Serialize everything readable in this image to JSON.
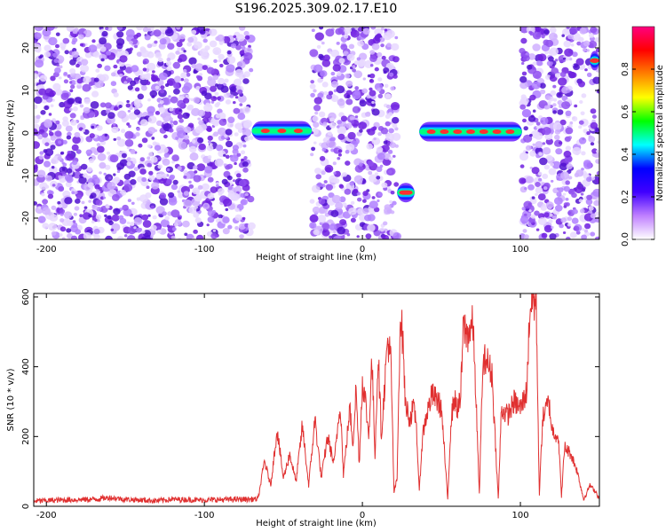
{
  "title": "S196.2025.309.02.17.E10",
  "chart_data": [
    {
      "type": "heatmap",
      "name": "spectrogram",
      "xlabel": "Height of straight line (km)",
      "ylabel": "Frequency (Hz)",
      "xlim": [
        -208,
        150
      ],
      "ylim": [
        -25,
        25
      ],
      "xticks": [
        -200,
        -100,
        0,
        100
      ],
      "yticks": [
        -20,
        -10,
        0,
        10,
        20
      ],
      "xtick_labels": [
        "-200",
        "-100",
        "0",
        "100"
      ],
      "ytick_labels": [
        "-20",
        "-10",
        "0",
        "10",
        "20"
      ],
      "noise_regions": [
        [
          -208,
          -70
        ],
        [
          -32,
          22
        ],
        [
          101,
          150
        ]
      ],
      "blank_regions": [
        [
          -70,
          -32
        ],
        [
          22,
          36
        ],
        [
          36,
          101
        ]
      ],
      "signal_traces": [
        {
          "x_start": -70,
          "x_end": -32,
          "freq_hz": 0.5,
          "peak_amplitude": 0.9
        },
        {
          "x_start": 22,
          "x_end": 33,
          "freq_hz": -14,
          "peak_amplitude": 0.85
        },
        {
          "x_start": 36,
          "x_end": 101,
          "freq_hz": 0.3,
          "peak_amplitude": 1.0
        },
        {
          "x_start": 144,
          "x_end": 150,
          "freq_hz": 17,
          "peak_amplitude": 0.8
        }
      ],
      "colorbar": {
        "label": "Normalized spectral amplitude",
        "range": [
          0,
          1
        ],
        "ticks": [
          0.0,
          0.2,
          0.4,
          0.6,
          0.8
        ],
        "tick_labels": [
          "0.0",
          "0.2",
          "0.4",
          "0.6",
          "0.8"
        ],
        "colors": [
          "#ffffff",
          "#c080ff",
          "#4000ff",
          "#0000ff",
          "#00ffff",
          "#00ff00",
          "#ffff00",
          "#ff8000",
          "#ff0000",
          "#ff0080"
        ]
      }
    },
    {
      "type": "line",
      "name": "snr",
      "xlabel": "Height of straight line (km)",
      "ylabel": "SNR (10 * v/v)",
      "xlim": [
        -208,
        150
      ],
      "ylim": [
        0,
        610
      ],
      "xticks": [
        -200,
        -100,
        0,
        100
      ],
      "yticks": [
        0,
        200,
        400,
        600
      ],
      "xtick_labels": [
        "-200",
        "-100",
        "0",
        "100"
      ],
      "ytick_labels": [
        "0",
        "200",
        "400",
        "600"
      ],
      "color": "#e03030",
      "series": [
        {
          "name": "SNR",
          "points": [
            [
              -208,
              15
            ],
            [
              -190,
              18
            ],
            [
              -170,
              20
            ],
            [
              -160,
              25
            ],
            [
              -150,
              20
            ],
            [
              -130,
              16
            ],
            [
              -120,
              20
            ],
            [
              -100,
              18
            ],
            [
              -80,
              20
            ],
            [
              -66,
              20
            ],
            [
              -62,
              130
            ],
            [
              -58,
              60
            ],
            [
              -54,
              220
            ],
            [
              -50,
              80
            ],
            [
              -46,
              150
            ],
            [
              -42,
              70
            ],
            [
              -38,
              230
            ],
            [
              -34,
              60
            ],
            [
              -30,
              250
            ],
            [
              -26,
              80
            ],
            [
              -22,
              200
            ],
            [
              -18,
              120
            ],
            [
              -14,
              300
            ],
            [
              -12,
              90
            ],
            [
              -8,
              280
            ],
            [
              -6,
              180
            ],
            [
              -4,
              340
            ],
            [
              -2,
              120
            ],
            [
              0,
              360
            ],
            [
              2,
              300
            ],
            [
              4,
              200
            ],
            [
              6,
              420
            ],
            [
              8,
              150
            ],
            [
              10,
              440
            ],
            [
              12,
              200
            ],
            [
              16,
              480
            ],
            [
              18,
              420
            ],
            [
              20,
              40
            ],
            [
              22,
              80
            ],
            [
              24,
              560
            ],
            [
              26,
              450
            ],
            [
              27,
              300
            ],
            [
              30,
              250
            ],
            [
              32,
              280
            ],
            [
              34,
              250
            ],
            [
              36,
              40
            ],
            [
              38,
              200
            ],
            [
              40,
              250
            ],
            [
              44,
              320
            ],
            [
              48,
              300
            ],
            [
              50,
              280
            ],
            [
              54,
              20
            ],
            [
              56,
              240
            ],
            [
              58,
              310
            ],
            [
              60,
              280
            ],
            [
              62,
              300
            ],
            [
              64,
              520
            ],
            [
              66,
              490
            ],
            [
              70,
              520
            ],
            [
              72,
              300
            ],
            [
              74,
              30
            ],
            [
              76,
              380
            ],
            [
              78,
              430
            ],
            [
              80,
              400
            ],
            [
              82,
              380
            ],
            [
              84,
              200
            ],
            [
              86,
              20
            ],
            [
              88,
              280
            ],
            [
              92,
              260
            ],
            [
              96,
              300
            ],
            [
              100,
              280
            ],
            [
              104,
              330
            ],
            [
              106,
              570
            ],
            [
              108,
              590
            ],
            [
              110,
              580
            ],
            [
              112,
              30
            ],
            [
              114,
              250
            ],
            [
              118,
              300
            ],
            [
              120,
              220
            ],
            [
              124,
              200
            ],
            [
              126,
              30
            ],
            [
              128,
              170
            ],
            [
              132,
              150
            ],
            [
              136,
              100
            ],
            [
              140,
              20
            ],
            [
              144,
              60
            ],
            [
              148,
              40
            ],
            [
              150,
              20
            ]
          ]
        }
      ]
    }
  ]
}
